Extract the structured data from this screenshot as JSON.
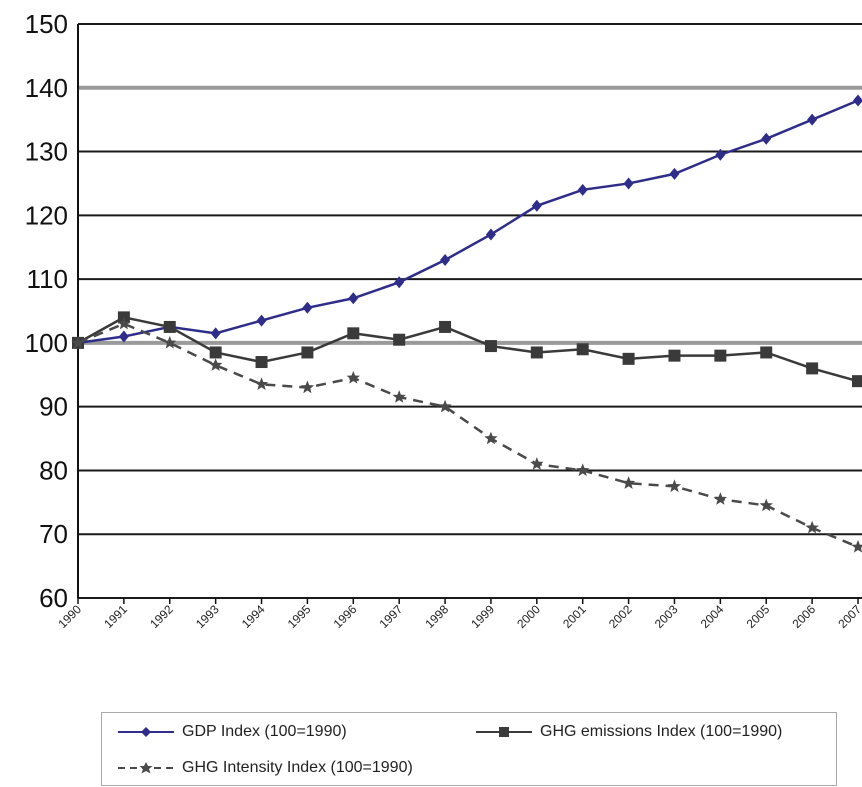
{
  "chart_data": {
    "type": "line",
    "categories": [
      "1990",
      "1991",
      "1992",
      "1993",
      "1994",
      "1995",
      "1996",
      "1997",
      "1998",
      "1999",
      "2000",
      "2001",
      "2002",
      "2003",
      "2004",
      "2005",
      "2006",
      "2007"
    ],
    "series": [
      {
        "name": "GDP Index (100=1990)",
        "color": "#2e2e8a",
        "marker": "diamond",
        "dash": false,
        "values": [
          100,
          101,
          102.5,
          101.5,
          103.5,
          105.5,
          107,
          109.5,
          113,
          117,
          121.5,
          124,
          125,
          126.5,
          129.5,
          132,
          135,
          138
        ]
      },
      {
        "name": "GHG emissions Index (100=1990)",
        "color": "#3a3a3a",
        "marker": "square",
        "dash": false,
        "values": [
          100,
          104,
          102.5,
          98.5,
          97,
          98.5,
          101.5,
          100.5,
          102.5,
          99.5,
          98.5,
          99,
          97.5,
          98,
          98,
          98.5,
          96,
          94
        ]
      },
      {
        "name": "GHG Intensity Index (100=1990)",
        "color": "#4a4a4a",
        "marker": "triangle",
        "dash": true,
        "values": [
          100,
          103,
          100,
          96.5,
          93.5,
          93,
          94.5,
          91.5,
          90,
          85,
          81,
          80,
          78,
          77.5,
          75.5,
          74.5,
          71,
          68
        ]
      }
    ],
    "ylim": [
      60,
      150
    ],
    "yticks": [
      60,
      70,
      80,
      90,
      100,
      110,
      120,
      130,
      140,
      150
    ],
    "grid": true,
    "legend_position": "bottom"
  }
}
